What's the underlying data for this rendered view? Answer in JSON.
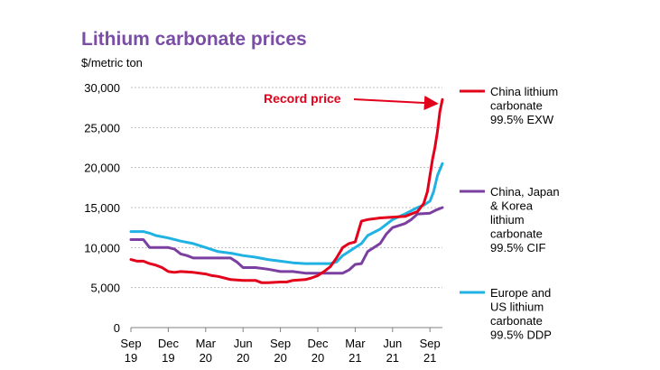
{
  "chart_data": {
    "type": "line",
    "title": "Lithium carbonate prices",
    "ylabel": "$/metric ton",
    "xlabel": "",
    "ylim": [
      0,
      30000
    ],
    "yticks": [
      {
        "value": 0,
        "label": "0"
      },
      {
        "value": 5000,
        "label": "5,000"
      },
      {
        "value": 10000,
        "label": "10,000"
      },
      {
        "value": 15000,
        "label": "15,000"
      },
      {
        "value": 20000,
        "label": "20,000"
      },
      {
        "value": 25000,
        "label": "25,000"
      },
      {
        "value": 30000,
        "label": "30,000"
      }
    ],
    "xlim": [
      0,
      25
    ],
    "xticks": [
      {
        "value": 0,
        "top": "Sep",
        "bottom": "19"
      },
      {
        "value": 3,
        "top": "Dec",
        "bottom": "19"
      },
      {
        "value": 6,
        "top": "Mar",
        "bottom": "20"
      },
      {
        "value": 9,
        "top": "Jun",
        "bottom": "20"
      },
      {
        "value": 12,
        "top": "Sep",
        "bottom": "20"
      },
      {
        "value": 15,
        "top": "Dec",
        "bottom": "20"
      },
      {
        "value": 18,
        "top": "Mar",
        "bottom": "21"
      },
      {
        "value": 21,
        "top": "Jun",
        "bottom": "21"
      },
      {
        "value": 24,
        "top": "Sep",
        "bottom": "21"
      }
    ],
    "grid": true,
    "legend_position": "right",
    "annotation": {
      "text": "Record price",
      "color": "#e3001b",
      "target_x": 24.7,
      "target_y": 28000
    },
    "series": [
      {
        "name": "China lithium carbonate 99.5% EXW",
        "legend_lines": [
          "China lithium",
          "carbonate",
          "99.5% EXW"
        ],
        "color": "#e3001b",
        "x": [
          0,
          0.5,
          1,
          1.5,
          2,
          2.5,
          3,
          3.5,
          4,
          5,
          6,
          6.5,
          7,
          8,
          9,
          10,
          10.5,
          11,
          12,
          12.5,
          13,
          14,
          14.5,
          15,
          15.5,
          16,
          16.5,
          17,
          17.5,
          18,
          18.5,
          19,
          20,
          21,
          22,
          23,
          23.5,
          23.8,
          24,
          24.2,
          24.4,
          24.6,
          24.8,
          25
        ],
        "y": [
          8500,
          8300,
          8300,
          8000,
          7800,
          7500,
          7000,
          6900,
          7000,
          6900,
          6700,
          6500,
          6400,
          6000,
          5900,
          5900,
          5600,
          5600,
          5700,
          5700,
          5900,
          6000,
          6200,
          6500,
          7000,
          7600,
          8700,
          10000,
          10500,
          10700,
          13300,
          13500,
          13700,
          13800,
          13900,
          14500,
          15500,
          17000,
          19000,
          21000,
          22500,
          24500,
          27000,
          28500
        ]
      },
      {
        "name": "China, Japan & Korea lithium carbonate 99.5% CIF",
        "legend_lines": [
          "China, Japan",
          "& Korea",
          "lithium",
          "carbonate",
          "99.5% CIF"
        ],
        "color": "#7a3fa0",
        "x": [
          0,
          1,
          1.5,
          2,
          3,
          3.5,
          4,
          4.5,
          5,
          6,
          7,
          8,
          8.5,
          9,
          10,
          11,
          12,
          13,
          14,
          15,
          16,
          16.5,
          17,
          17.5,
          18,
          18.5,
          19,
          20,
          20.5,
          21,
          22,
          22.5,
          23,
          24,
          24.5,
          25
        ],
        "y": [
          11000,
          11000,
          10000,
          10000,
          10000,
          9800,
          9200,
          9000,
          8700,
          8700,
          8700,
          8700,
          8200,
          7500,
          7500,
          7300,
          7000,
          7000,
          6800,
          6800,
          6800,
          6800,
          6800,
          7200,
          7900,
          8000,
          9500,
          10500,
          11700,
          12500,
          13000,
          13500,
          14200,
          14300,
          14700,
          15000
        ]
      },
      {
        "name": "Europe and US lithium carbonate 99.5% DDP",
        "legend_lines": [
          "Europe and",
          "US lithium",
          "carbonate",
          "99.5% DDP"
        ],
        "color": "#1fb2e3",
        "x": [
          0,
          1,
          1.5,
          2,
          3,
          4,
          5,
          6,
          7,
          8,
          9,
          10,
          11,
          12,
          13,
          14,
          15,
          16,
          16.5,
          17,
          18,
          18.5,
          19,
          20,
          21,
          22,
          23,
          23.5,
          24,
          24.3,
          24.6,
          25
        ],
        "y": [
          12000,
          12000,
          11800,
          11500,
          11200,
          10800,
          10500,
          10000,
          9500,
          9300,
          9000,
          8800,
          8500,
          8300,
          8100,
          8000,
          8000,
          8000,
          8200,
          9000,
          10000,
          10500,
          11500,
          12300,
          13500,
          14200,
          15000,
          15300,
          15800,
          17000,
          19000,
          20500
        ]
      }
    ]
  }
}
